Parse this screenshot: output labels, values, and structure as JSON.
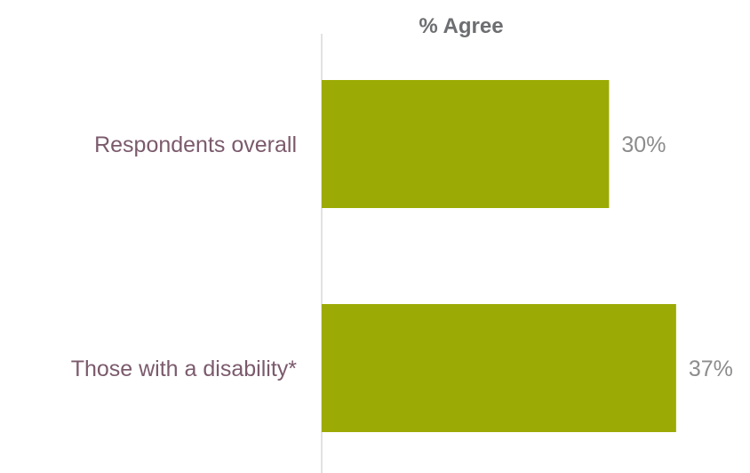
{
  "chart_data": {
    "type": "bar",
    "orientation": "horizontal",
    "title": "% Agree",
    "categories": [
      "Respondents overall",
      "Those with a disability*"
    ],
    "values": [
      30,
      37
    ],
    "value_labels": [
      "30%",
      "37%"
    ],
    "xlim": [
      0,
      40
    ],
    "grid": false,
    "colors": {
      "bar": "#9caa05",
      "axis": "#d9d9d9",
      "category_text": "#7b5a6c",
      "value_text": "#8c8c8c",
      "title_text": "#6d6e71"
    }
  }
}
